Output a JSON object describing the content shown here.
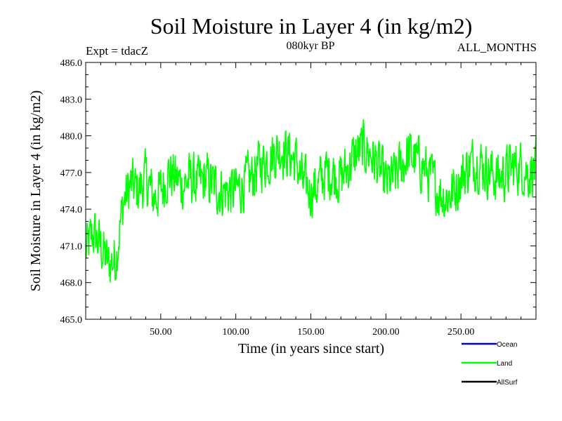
{
  "chart_data": {
    "type": "line",
    "title": "Soil Moisture in Layer 4 (in kg/m2)",
    "subtitle_left": "Expt = tdacZ",
    "subtitle_center": "080kyr BP",
    "subtitle_right": "ALL_MONTHS",
    "xlabel": "Time (in years since start)",
    "ylabel": "Soil Moisture in Layer 4 (in kg/m2)",
    "xlim": [
      0,
      300
    ],
    "ylim": [
      465.0,
      486.0
    ],
    "x_ticks": [
      50,
      100,
      150,
      200,
      250
    ],
    "x_tick_labels": [
      "50.00",
      "100.00",
      "150.00",
      "200.00",
      "250.00"
    ],
    "y_ticks": [
      465,
      468,
      471,
      474,
      477,
      480,
      483,
      486
    ],
    "y_tick_labels": [
      "465.0",
      "468.0",
      "471.0",
      "474.0",
      "477.0",
      "480.0",
      "483.0",
      "486.0"
    ],
    "legend": [
      {
        "name": "Ocean",
        "color": "#0000cc"
      },
      {
        "name": "Land",
        "color": "#00ff00"
      },
      {
        "name": "AllSurf",
        "color": "#000000"
      }
    ],
    "series": [
      {
        "name": "Land",
        "color": "#00ff00",
        "x": [
          0,
          5,
          10,
          15,
          20,
          25,
          30,
          35,
          40,
          45,
          50,
          55,
          60,
          65,
          70,
          75,
          80,
          85,
          90,
          95,
          100,
          105,
          110,
          115,
          120,
          125,
          130,
          135,
          140,
          145,
          150,
          155,
          160,
          165,
          170,
          175,
          180,
          185,
          190,
          195,
          200,
          205,
          210,
          215,
          220,
          225,
          230,
          235,
          240,
          245,
          250,
          255,
          260,
          265,
          270,
          275,
          280,
          285,
          290,
          295,
          300
        ],
        "values": [
          470.5,
          472.0,
          471.0,
          469.5,
          470.0,
          474.5,
          476.0,
          475.5,
          476.5,
          475.0,
          475.5,
          477.0,
          476.5,
          476.0,
          476.5,
          476.0,
          476.5,
          476.0,
          475.5,
          475.5,
          475.5,
          476.0,
          476.5,
          477.5,
          478.0,
          478.5,
          479.0,
          478.5,
          478.0,
          476.0,
          475.5,
          476.0,
          477.0,
          477.0,
          476.5,
          477.5,
          478.5,
          479.0,
          478.5,
          477.5,
          476.0,
          476.5,
          477.5,
          478.5,
          478.0,
          477.5,
          476.5,
          475.5,
          475.0,
          475.5,
          476.5,
          477.5,
          478.0,
          477.5,
          477.0,
          476.5,
          477.0,
          477.5,
          477.5,
          477.0,
          477.5
        ],
        "noise_amplitude": 2.2,
        "points_per_year": 3
      }
    ]
  }
}
